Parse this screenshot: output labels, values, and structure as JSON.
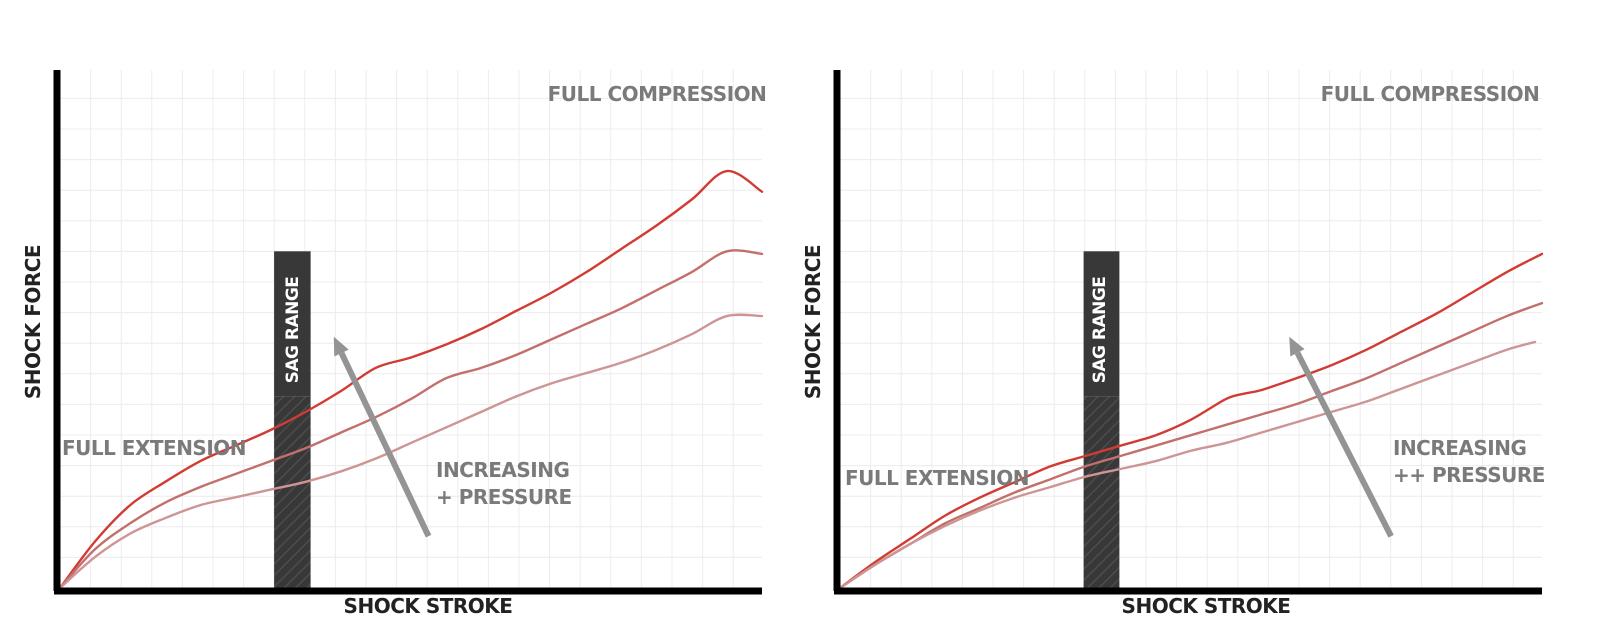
{
  "colors": {
    "axis": "#000000",
    "grid": "#ececec",
    "sag_band": "#383838",
    "arrow": "#949494",
    "label": "#7a7a7a"
  },
  "chart_data": [
    {
      "type": "line",
      "title": "",
      "xlabel": "SHOCK STROKE",
      "ylabel": "SHOCK FORCE",
      "xlim": [
        0,
        100
      ],
      "ylim": [
        0,
        100
      ],
      "grid": true,
      "labels": {
        "top_right": "FULL COMPRESSION",
        "left": "FULL EXTENSION",
        "arrow_line1": "INCREASING",
        "arrow_line2": "+ PRESSURE",
        "sag": "SAG RANGE"
      },
      "sag_range": {
        "x": [
          30.5,
          35.7
        ],
        "y_top": 65
      },
      "arrow": {
        "from": [
          52.5,
          10
        ],
        "to": [
          39,
          48.5
        ]
      },
      "series": [
        {
          "color": "#d23b33",
          "x": [
            0,
            5,
            10,
            15,
            20,
            25,
            30,
            35,
            40,
            45,
            50,
            55,
            60,
            65,
            70,
            75,
            80,
            85,
            90,
            95,
            100
          ],
          "y": [
            0,
            9,
            16,
            20.5,
            24.5,
            27.5,
            30.5,
            34,
            38,
            42.5,
            44.5,
            47,
            50,
            53.5,
            57,
            61,
            65.5,
            70,
            75,
            80.5,
            76.5
          ]
        },
        {
          "color": "#c3706c",
          "x": [
            0,
            5,
            10,
            15,
            20,
            25,
            30,
            35,
            40,
            45,
            50,
            55,
            60,
            65,
            70,
            75,
            80,
            85,
            90,
            95,
            100
          ],
          "y": [
            0,
            7.5,
            12.5,
            16.5,
            19.5,
            22,
            24.5,
            27,
            30,
            33,
            36.5,
            40.5,
            42.5,
            45,
            48,
            51,
            54,
            57.5,
            61,
            65,
            64.5
          ]
        },
        {
          "color": "#cd9593",
          "x": [
            0,
            5,
            10,
            15,
            20,
            25,
            30,
            35,
            40,
            45,
            50,
            55,
            60,
            65,
            70,
            75,
            80,
            85,
            90,
            95,
            100
          ],
          "y": [
            0,
            6,
            10.5,
            13.5,
            16,
            17.5,
            19,
            20.5,
            22.5,
            25,
            28,
            31,
            34,
            37,
            39.5,
            41.5,
            43.5,
            46,
            49,
            52.5,
            52.5
          ]
        }
      ]
    },
    {
      "type": "line",
      "title": "",
      "xlabel": "SHOCK STROKE",
      "ylabel": "SHOCK FORCE",
      "xlim": [
        0,
        100
      ],
      "ylim": [
        0,
        100
      ],
      "grid": true,
      "labels": {
        "top_right": "FULL COMPRESSION",
        "left": "FULL EXTENSION",
        "arrow_line1": "INCREASING",
        "arrow_line2": "++ PRESSURE",
        "sag": "SAG RANGE"
      },
      "sag_range": {
        "x": [
          34.7,
          39.8
        ],
        "y_top": 65
      },
      "arrow": {
        "from": [
          78.5,
          10
        ],
        "to": [
          64,
          48.5
        ]
      },
      "series": [
        {
          "color": "#d23b33",
          "x": [
            0,
            5,
            10,
            15,
            20,
            25,
            30,
            35,
            40,
            45,
            50,
            55,
            57.5,
            60,
            65,
            70,
            75,
            80,
            85,
            90,
            95,
            100
          ],
          "y": [
            0,
            5,
            9.5,
            14,
            17.5,
            20.5,
            23.5,
            25.5,
            27.5,
            29.5,
            32.5,
            36.5,
            37.5,
            38.2,
            40.5,
            43,
            46,
            49.5,
            53,
            57,
            61,
            64.5
          ]
        },
        {
          "color": "#c3706c",
          "x": [
            0,
            5,
            10,
            15,
            20,
            25,
            30,
            35,
            40,
            45,
            50,
            55,
            60,
            65,
            70,
            75,
            80,
            85,
            90,
            95,
            100
          ],
          "y": [
            0,
            4.5,
            8.5,
            12.5,
            15.5,
            18.5,
            21,
            23.5,
            25.5,
            27.5,
            29.5,
            31.5,
            33.5,
            35.5,
            38,
            40.5,
            43.5,
            46.5,
            49.5,
            52.5,
            55
          ]
        },
        {
          "color": "#cd9593",
          "x": [
            0,
            5,
            10,
            15,
            20,
            25,
            30,
            35,
            40,
            45,
            50,
            55,
            60,
            65,
            70,
            75,
            80,
            85,
            90,
            95,
            99
          ],
          "y": [
            0,
            4.5,
            8.5,
            12,
            15,
            17.5,
            19.5,
            21.5,
            23,
            24.5,
            26.5,
            28,
            30,
            32,
            34,
            36,
            38.5,
            41,
            43.5,
            46,
            47.5
          ]
        }
      ]
    }
  ]
}
